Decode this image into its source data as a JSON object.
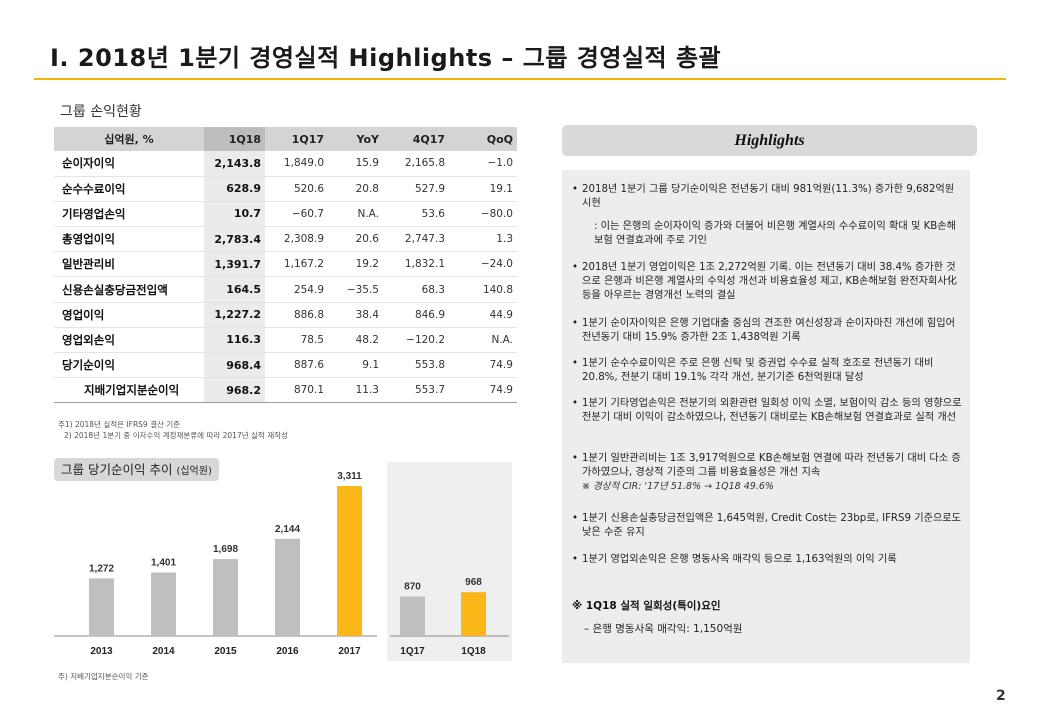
{
  "slide": {
    "title": "Ⅰ. 2018년 1분기 경영실적 Highlights – 그룹 경영실적 총괄",
    "page_number": "2",
    "accent_color": "#f5b40a"
  },
  "income_table": {
    "label": "그룹 손익현황",
    "headers": [
      "십억원, %",
      "1Q18",
      "1Q17",
      "YoY",
      "4Q17",
      "QoQ"
    ],
    "rows": [
      {
        "name": "순이자이익",
        "q18": "2,143.8",
        "q17": "1,849.0",
        "yoy": "15.9",
        "q417": "2,165.8",
        "qoq": "-1.0"
      },
      {
        "name": "순수수료이익",
        "q18": "628.9",
        "q17": "520.6",
        "yoy": "20.8",
        "q417": "527.9",
        "qoq": "19.1"
      },
      {
        "name": "기타영업손익",
        "q18": "10.7",
        "q17": "-60.7",
        "yoy": "N.A.",
        "q417": "53.6",
        "qoq": "-80.0"
      },
      {
        "name": "총영업이익",
        "q18": "2,783.4",
        "q17": "2,308.9",
        "yoy": "20.6",
        "q417": "2,747.3",
        "qoq": "1.3"
      },
      {
        "name": "일반관리비",
        "q18": "1,391.7",
        "q17": "1,167.2",
        "yoy": "19.2",
        "q417": "1,832.1",
        "qoq": "-24.0"
      },
      {
        "name": "신용손실충당금전입액",
        "q18": "164.5",
        "q17": "254.9",
        "yoy": "-35.5",
        "q417": "68.3",
        "qoq": "140.8"
      },
      {
        "name": "영업이익",
        "q18": "1,227.2",
        "q17": "886.8",
        "yoy": "38.4",
        "q417": "846.9",
        "qoq": "44.9"
      },
      {
        "name": "영업외손익",
        "q18": "116.3",
        "q17": "78.5",
        "yoy": "48.2",
        "q417": "-120.2",
        "qoq": "N.A."
      },
      {
        "name": "당기순이익",
        "q18": "968.4",
        "q17": "887.6",
        "yoy": "9.1",
        "q417": "553.8",
        "qoq": "74.9"
      },
      {
        "name": "지배기업지분순이익",
        "q18": "968.2",
        "q17": "870.1",
        "yoy": "11.3",
        "q417": "553.7",
        "qoq": "74.9"
      }
    ],
    "footnote1": "주1) 2018년 실적은 IFRS9 결산 기준",
    "footnote2": "2) 2018년 1분기 중 이자수익 계정재분류에 따라 2017년 실적 재작성"
  },
  "chart_label": {
    "text": "그룹 당기순이익 추이",
    "unit": "(십억원)"
  },
  "chart_data": [
    {
      "type": "bar",
      "categories": [
        "2013",
        "2014",
        "2015",
        "2016",
        "2017"
      ],
      "values": [
        1272,
        1401,
        1698,
        2144,
        3311
      ],
      "value_labels": [
        "1,272",
        "1,401",
        "1,698",
        "2,144",
        "3,311"
      ],
      "highlight_index": 4,
      "colors": {
        "normal": "#bfbfbf",
        "highlight": "#fbb718"
      }
    },
    {
      "type": "bar",
      "categories": [
        "1Q17",
        "1Q18"
      ],
      "values": [
        870,
        968
      ],
      "value_labels": [
        "870",
        "968"
      ],
      "highlight_index": 1,
      "colors": {
        "normal": "#bfbfbf",
        "highlight": "#fbb718"
      }
    }
  ],
  "chart_footnote": "주) 지배기업지분순이익 기준",
  "highlights": {
    "header": "Highlights",
    "items": [
      "2018년 1분기 그룹 당기순이익은 전년동기 대비 981억원(11.3%) 증가한 9,682억원 시현",
      "2018년 1분기 영업이익은 1조 2,272억원 기록. 이는 전년동기 대비 38.4% 증가한 것으로 은행과 비은행 계열사의 수익성 개선과 비용효율성 제고, KB손해보험 완전자회사化 등을 아우르는 경영개선 노력의 결실",
      "1분기 순이자이익은 은행 기업대출 중심의 견조한 여신성장과 순이자마진 개선에 힘입어 전년동기 대비 15.9% 증가한 2조 1,438억원 기록",
      "1분기 순수수료이익은 주로 은행 신탁 및 증권업 수수료 실적 호조로 전년동기 대비 20.8%, 전분기 대비 19.1% 각각 개선, 분기기준 6천억원대 달성",
      "1분기 기타영업손익은 전분기의 외환관련 일회성 이익 소멸, 보험이익 감소 등의 영향으로 전분기 대비 이익이 감소하였으나, 전년동기 대비로는 KB손해보험 연결효과로 실적 개선",
      "1분기 일반관리비는 1조 3,917억원으로 KB손해보험 연결에 따라 전년동기 대비 다소 증가하였으나, 경상적 기준의 그룹 비용효율성은 개선 지속",
      "1분기 신용손실충당금전입액은 1,645억원, Credit Cost는 23bp로, IFRS9 기준으로도 낮은 수준 유지",
      "1분기 영업외손익은 은행 명동사옥 매각익 등으로 1,163억원의 이익 기록"
    ],
    "note_first": ": 이는 은행의 순이자이익 증가와 더불어 비은행 계열사의 수수료이익 확대 및 KB손해보험 연결효과에 주로 기인",
    "note_cir": "※ 경상적 CIR: '17년 51.8% → 1Q18 49.6%",
    "special_title": "※ 1Q18 실적 일회성(특이)요인",
    "special_item": "–   은행 명동사옥 매각익: 1,150억원"
  }
}
